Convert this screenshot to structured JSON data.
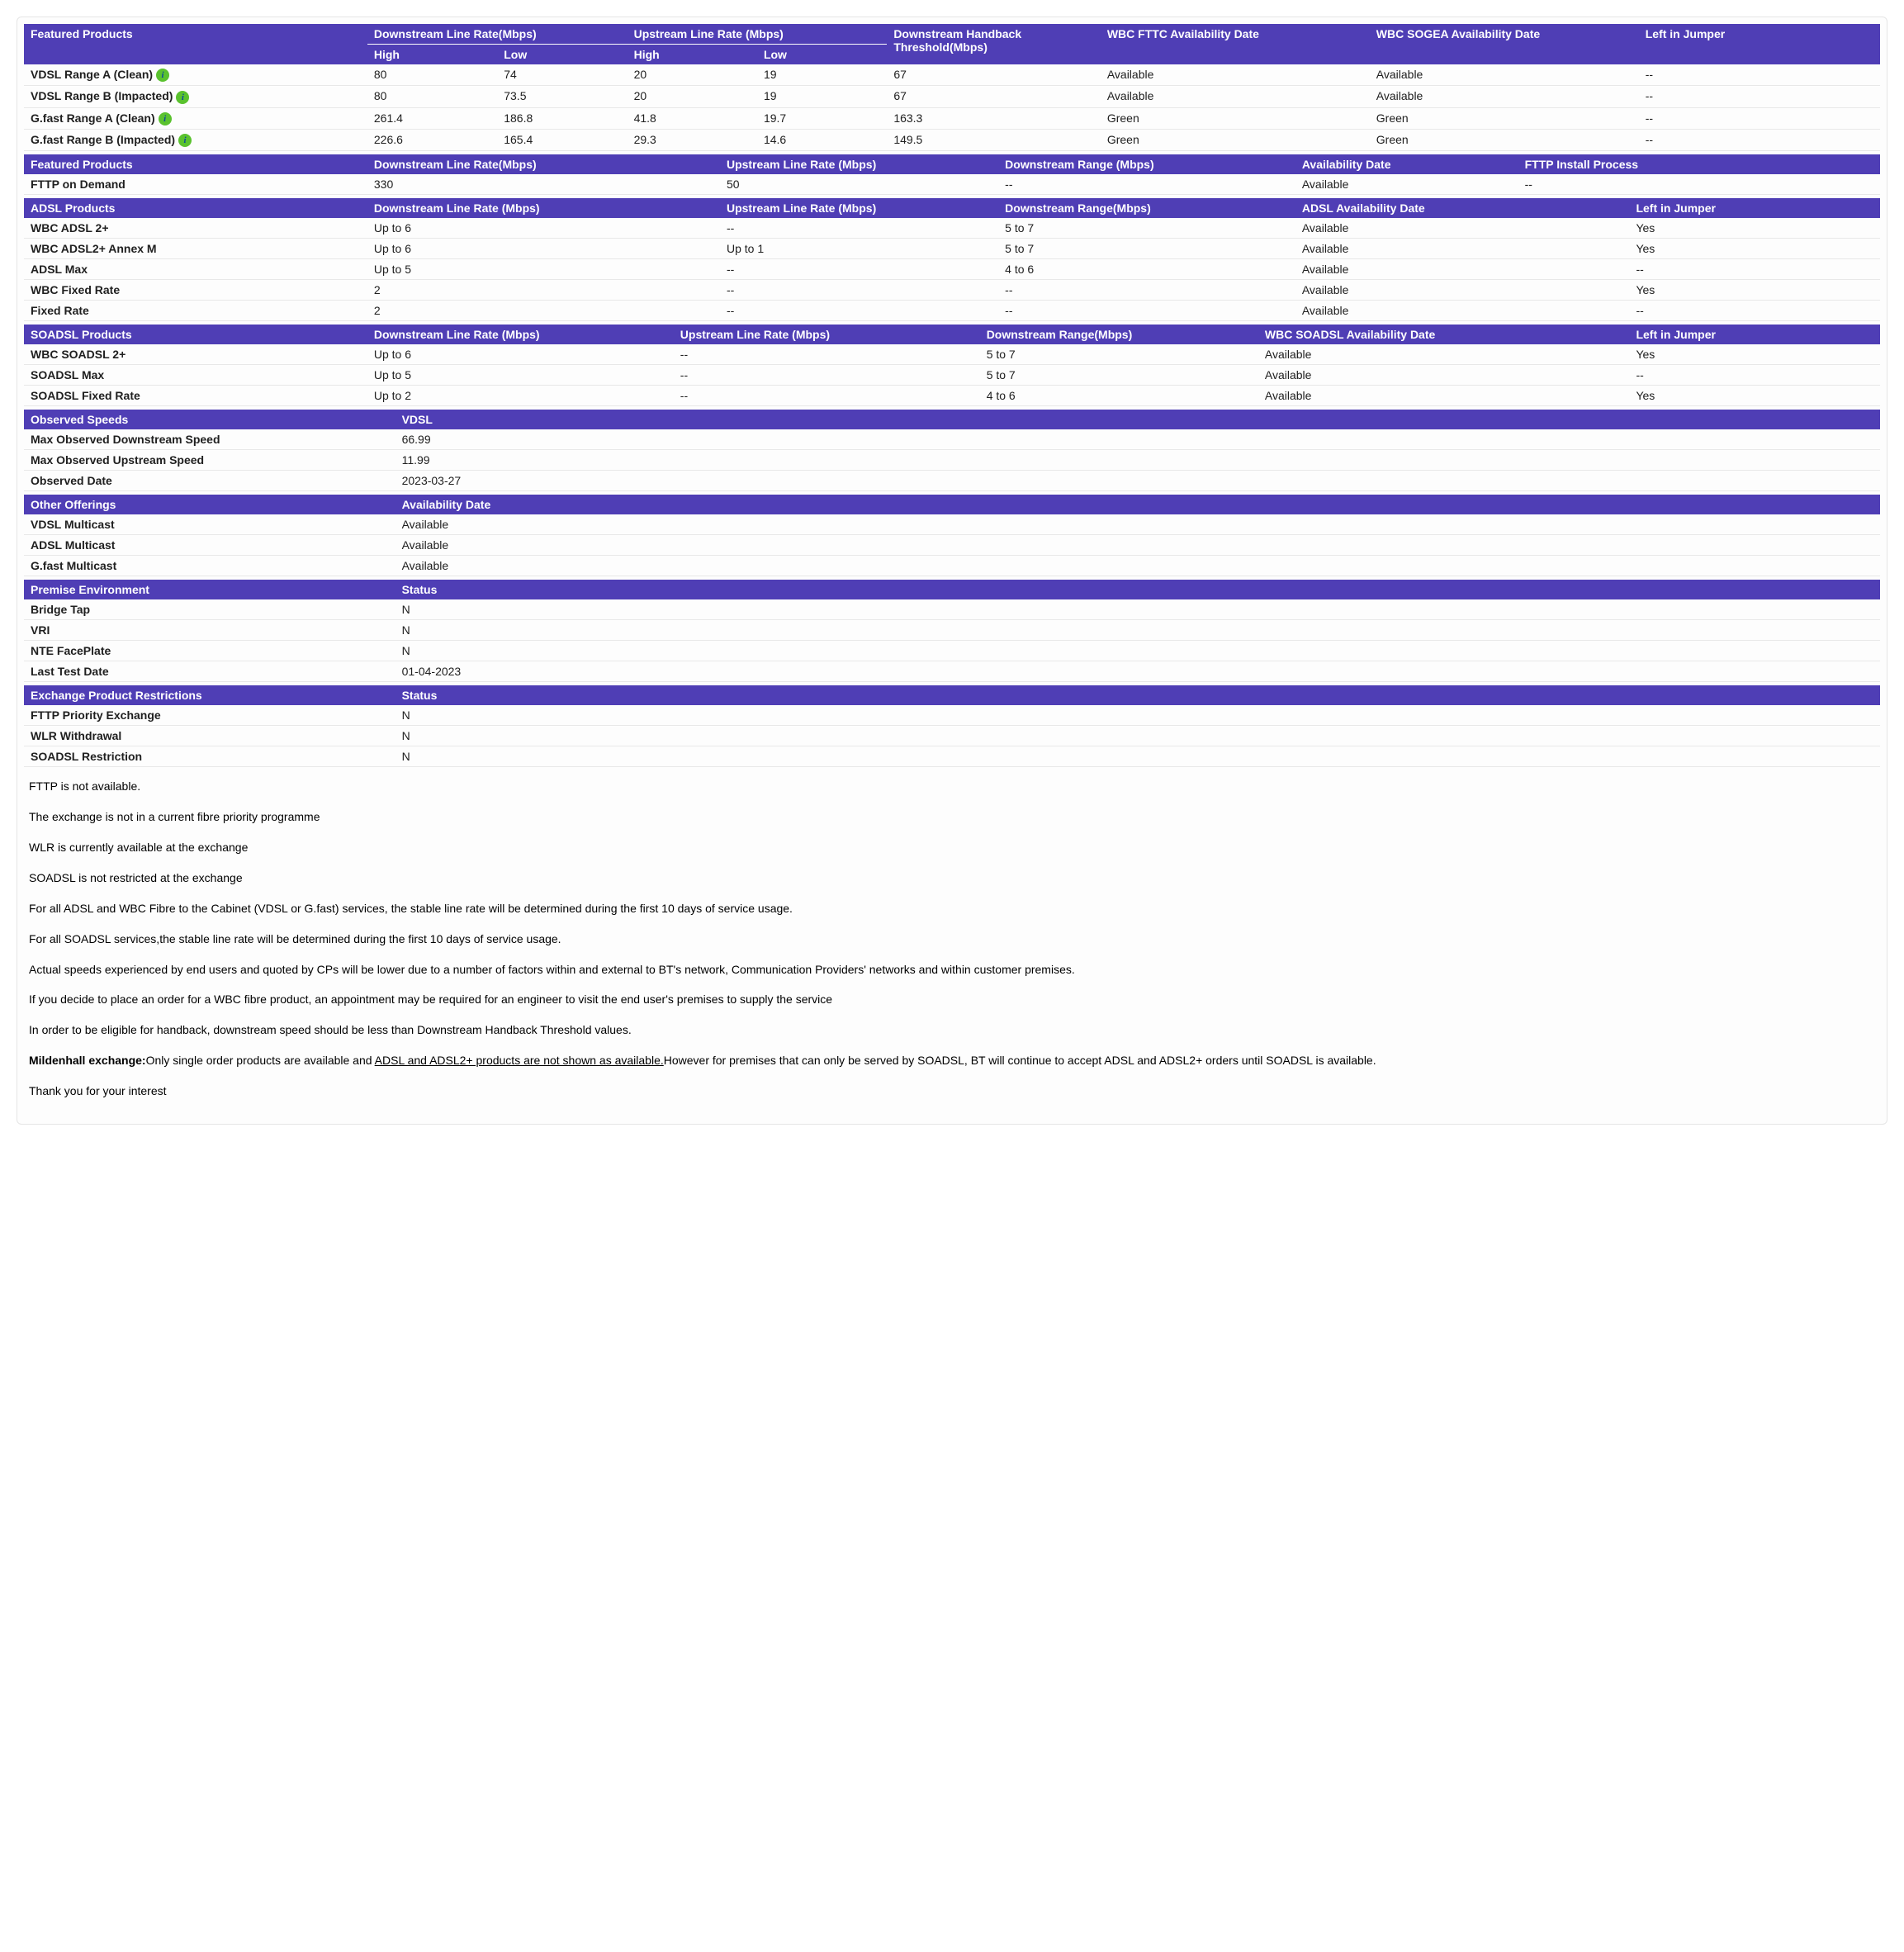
{
  "colors": {
    "header_bg": "#4f3eb5",
    "header_fg": "#ffffff",
    "row_border": "#e8e8e8",
    "info_icon_bg": "#5ac22e",
    "info_icon_fg": "#0a4a9a"
  },
  "t1": {
    "h": {
      "c0": "Featured Products",
      "c1": "Downstream Line Rate(Mbps)",
      "c2": "Upstream Line Rate (Mbps)",
      "c3": "Downstream Handback Threshold(Mbps)",
      "c4": "WBC FTTC Availability Date",
      "c5": "WBC SOGEA Availability Date",
      "c6": "Left in Jumper",
      "sub_high1": "High",
      "sub_low1": "Low",
      "sub_high2": "High",
      "sub_low2": "Low"
    },
    "r": [
      {
        "name": "VDSL Range A (Clean)",
        "icon": true,
        "dh": "80",
        "dl": "74",
        "uh": "20",
        "ul": "19",
        "hb": "67",
        "a1": "Available",
        "a2": "Available",
        "lj": "--"
      },
      {
        "name": "VDSL Range B (Impacted)",
        "icon": true,
        "dh": "80",
        "dl": "73.5",
        "uh": "20",
        "ul": "19",
        "hb": "67",
        "a1": "Available",
        "a2": "Available",
        "lj": "--"
      },
      {
        "name": "G.fast Range A (Clean)",
        "icon": true,
        "dh": "261.4",
        "dl": "186.8",
        "uh": "41.8",
        "ul": "19.7",
        "hb": "163.3",
        "a1": "Green",
        "a2": "Green",
        "lj": "--"
      },
      {
        "name": "G.fast Range B (Impacted)",
        "icon": true,
        "dh": "226.6",
        "dl": "165.4",
        "uh": "29.3",
        "ul": "14.6",
        "hb": "149.5",
        "a1": "Green",
        "a2": "Green",
        "lj": "--"
      }
    ]
  },
  "t2": {
    "h": {
      "c0": "Featured Products",
      "c1": "Downstream Line Rate(Mbps)",
      "c2": "Upstream Line Rate (Mbps)",
      "c3": "Downstream Range (Mbps)",
      "c4": "Availability Date",
      "c5": "FTTP Install Process"
    },
    "r": [
      {
        "name": "FTTP on Demand",
        "d": "330",
        "u": "50",
        "rng": "--",
        "av": "Available",
        "ip": "--"
      }
    ]
  },
  "t3": {
    "h": {
      "c0": "ADSL Products",
      "c1": "Downstream Line Rate (Mbps)",
      "c2": "Upstream Line Rate (Mbps)",
      "c3": "Downstream Range(Mbps)",
      "c4": "ADSL Availability Date",
      "c5": "Left in Jumper"
    },
    "r": [
      {
        "name": "WBC ADSL 2+",
        "d": "Up to 6",
        "u": "--",
        "rng": "5 to 7",
        "av": "Available",
        "lj": "Yes"
      },
      {
        "name": "WBC ADSL2+ Annex M",
        "d": "Up to 6",
        "u": "Up to 1",
        "rng": "5 to 7",
        "av": "Available",
        "lj": "Yes"
      },
      {
        "name": "ADSL Max",
        "d": "Up to 5",
        "u": "--",
        "rng": "4 to 6",
        "av": "Available",
        "lj": "--"
      },
      {
        "name": "WBC Fixed Rate",
        "d": "2",
        "u": "--",
        "rng": "--",
        "av": "Available",
        "lj": "Yes"
      },
      {
        "name": "Fixed Rate",
        "d": "2",
        "u": "--",
        "rng": "--",
        "av": "Available",
        "lj": "--"
      }
    ]
  },
  "t4": {
    "h": {
      "c0": "SOADSL Products",
      "c1": "Downstream Line Rate (Mbps)",
      "c2": "Upstream Line Rate (Mbps)",
      "c3": "Downstream Range(Mbps)",
      "c4": "WBC SOADSL Availability Date",
      "c5": "Left in Jumper"
    },
    "r": [
      {
        "name": "WBC SOADSL 2+",
        "d": "Up to 6",
        "u": "--",
        "rng": "5 to 7",
        "av": "Available",
        "lj": "Yes"
      },
      {
        "name": "SOADSL Max",
        "d": "Up to 5",
        "u": "--",
        "rng": "5 to 7",
        "av": "Available",
        "lj": "--"
      },
      {
        "name": "SOADSL Fixed Rate",
        "d": "Up to 2",
        "u": "--",
        "rng": "4 to 6",
        "av": "Available",
        "lj": "Yes"
      }
    ]
  },
  "t5": {
    "h": {
      "c0": "Observed Speeds",
      "c1": "VDSL"
    },
    "r": [
      {
        "name": "Max Observed Downstream Speed",
        "v": "66.99"
      },
      {
        "name": "Max Observed Upstream Speed",
        "v": "11.99"
      },
      {
        "name": "Observed Date",
        "v": "2023-03-27"
      }
    ]
  },
  "t6": {
    "h": {
      "c0": "Other Offerings",
      "c1": "Availability Date"
    },
    "r": [
      {
        "name": "VDSL Multicast",
        "v": "Available"
      },
      {
        "name": "ADSL Multicast",
        "v": "Available"
      },
      {
        "name": "G.fast Multicast",
        "v": "Available"
      }
    ]
  },
  "t7": {
    "h": {
      "c0": "Premise Environment",
      "c1": "Status"
    },
    "r": [
      {
        "name": "Bridge Tap",
        "v": "N"
      },
      {
        "name": "VRI",
        "v": "N"
      },
      {
        "name": "NTE FacePlate",
        "v": "N"
      },
      {
        "name": "Last Test Date",
        "v": "01-04-2023"
      }
    ]
  },
  "t8": {
    "h": {
      "c0": "Exchange Product Restrictions",
      "c1": "Status"
    },
    "r": [
      {
        "name": "FTTP Priority Exchange",
        "v": "N"
      },
      {
        "name": "WLR Withdrawal",
        "v": "N"
      },
      {
        "name": "SOADSL Restriction",
        "v": "N"
      }
    ]
  },
  "notes": {
    "p1": "FTTP is not available.",
    "p2": "The exchange is not in a current fibre priority programme",
    "p3": "WLR is currently available at the exchange",
    "p4": "SOADSL is not restricted at the exchange",
    "p5": "For all ADSL and WBC Fibre to the Cabinet (VDSL or G.fast) services, the stable line rate will be determined during the first 10 days of service usage.",
    "p6": "For all SOADSL services,the stable line rate will be determined during the first 10 days of service usage.",
    "p7": "Actual speeds experienced by end users and quoted by CPs will be lower due to a number of factors within and external to BT's network, Communication Providers' networks and within customer premises.",
    "p8": "If you decide to place an order for a WBC fibre product, an appointment may be required for an engineer to visit the end user's premises to supply the service",
    "p9": "In order to be eligible for handback, downstream speed should be less than Downstream Handback Threshold values.",
    "p10a": "Mildenhall exchange:",
    "p10b": "Only single order products are available and ",
    "p10c": "ADSL and ADSL2+ products are not shown as available.",
    "p10d": "However for premises that can only be served by SOADSL, BT will continue to accept ADSL and ADSL2+ orders until SOADSL is available.",
    "p11": "Thank you for your interest"
  }
}
